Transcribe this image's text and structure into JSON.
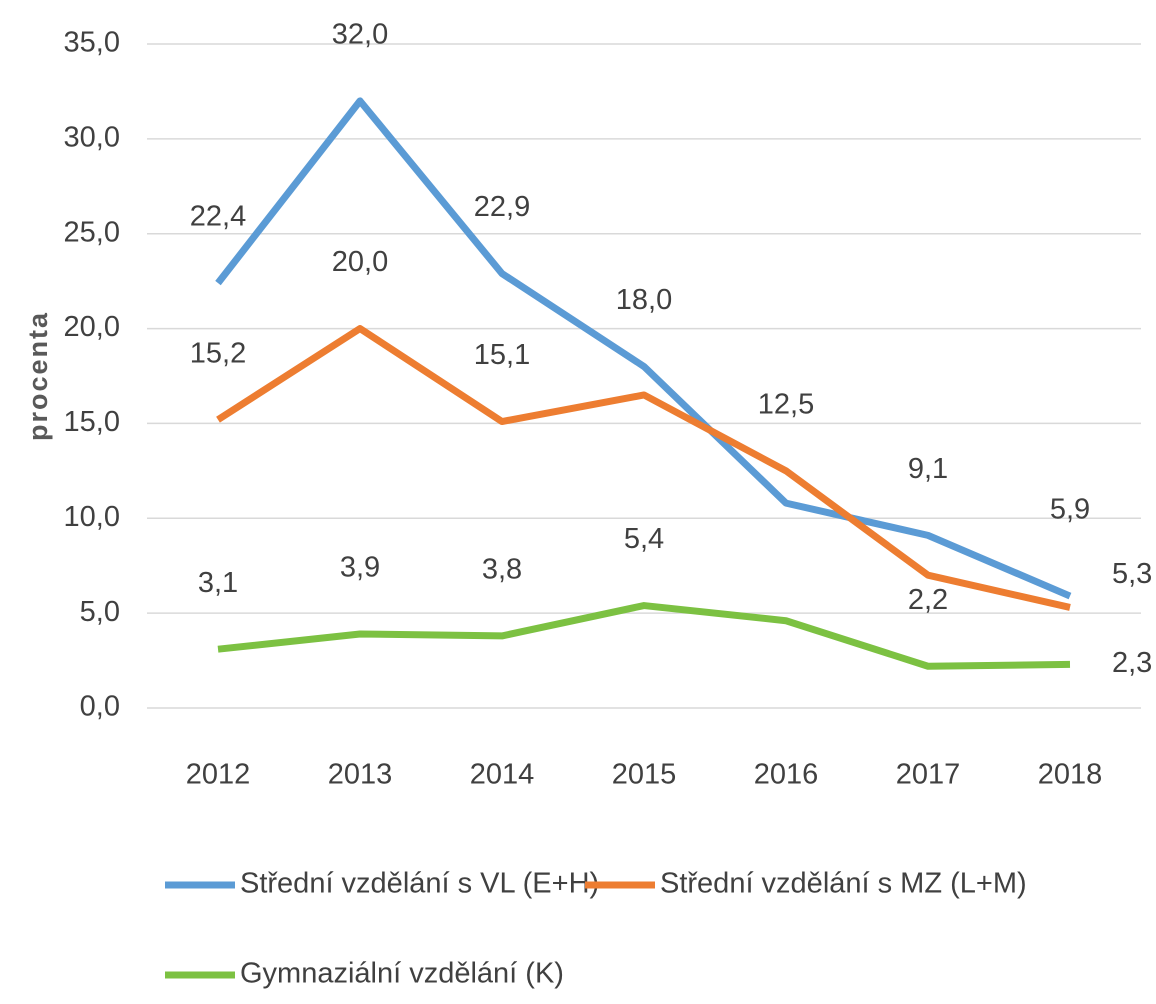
{
  "chart_data": {
    "type": "line",
    "y_label": "procenta",
    "categories": [
      "2012",
      "2013",
      "2014",
      "2015",
      "2016",
      "2017",
      "2018"
    ],
    "series": [
      {
        "name": "Střední vzdělání s VL (E+H)",
        "color": "#5b9bd5",
        "values": [
          22.4,
          32.0,
          22.9,
          18.0,
          10.8,
          9.1,
          5.9
        ],
        "value_labels": [
          "22,4",
          "32,0",
          "22,9",
          "18,0",
          null,
          "9,1",
          "5,9"
        ]
      },
      {
        "name": "Střední vzdělání s MZ (L+M)",
        "color": "#ed7d31",
        "values": [
          15.2,
          20.0,
          15.1,
          16.5,
          12.5,
          7.0,
          5.3
        ],
        "value_labels": [
          "15,2",
          "20,0",
          "15,1",
          null,
          "12,5",
          null,
          "5,3"
        ]
      },
      {
        "name": "Gymnaziální vzdělání (K)",
        "color": "#7cc142",
        "values": [
          3.1,
          3.9,
          3.8,
          5.4,
          4.6,
          2.2,
          2.3
        ],
        "value_labels": [
          "3,1",
          "3,9",
          "3,8",
          "5,4",
          null,
          "2,2",
          "2,3"
        ]
      }
    ],
    "ylim": [
      0,
      35
    ],
    "yticks": [
      {
        "value": 0,
        "label": "0,0"
      },
      {
        "value": 5,
        "label": "5,0"
      },
      {
        "value": 10,
        "label": "10,0"
      },
      {
        "value": 15,
        "label": "15,0"
      },
      {
        "value": 20,
        "label": "20,0"
      },
      {
        "value": 25,
        "label": "25,0"
      },
      {
        "value": 30,
        "label": "30,0"
      },
      {
        "value": 35,
        "label": "35,0"
      }
    ],
    "grid": true
  }
}
